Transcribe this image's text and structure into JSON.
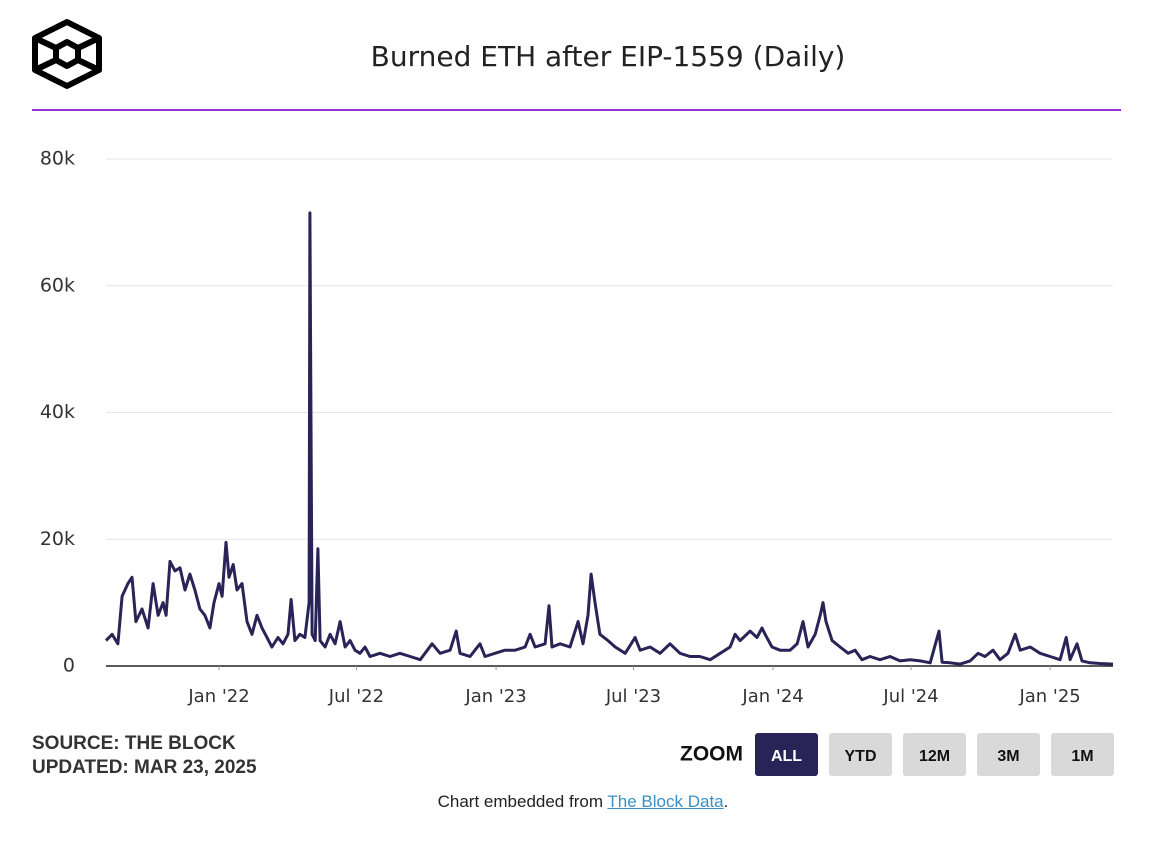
{
  "chart_data": {
    "type": "line",
    "title": "Burned ETH after EIP-1559 (Daily)",
    "color": "#2a2357",
    "grid": true,
    "xlim": [
      2021.592,
      2025.227
    ],
    "xticks": [
      {
        "value": 2022,
        "label": "Jan '22"
      },
      {
        "value": 2022.496,
        "label": "Jul '22"
      },
      {
        "value": 2023,
        "label": "Jan '23"
      },
      {
        "value": 2023.496,
        "label": "Jul '23"
      },
      {
        "value": 2024,
        "label": "Jan '24"
      },
      {
        "value": 2024.498,
        "label": "Jul '24"
      },
      {
        "value": 2025,
        "label": "Jan '25"
      }
    ],
    "ylim": [
      0,
      80000
    ],
    "yticks": [
      0,
      {
        "value": 20000,
        "label": "20k"
      },
      {
        "value": 40000,
        "label": "40k"
      },
      {
        "value": 60000,
        "label": "60k"
      },
      {
        "value": 80000,
        "label": "80k"
      }
    ],
    "x": [
      2021.592,
      2021.614,
      2021.635,
      2021.65,
      2021.671,
      2021.686,
      2021.7,
      2021.722,
      2021.744,
      2021.762,
      2021.78,
      2021.798,
      2021.809,
      2021.823,
      2021.841,
      2021.859,
      2021.877,
      2021.895,
      2021.913,
      2021.931,
      2021.949,
      2021.967,
      2021.982,
      2022.0,
      2022.011,
      2022.025,
      2022.036,
      2022.051,
      2022.065,
      2022.083,
      2022.101,
      2022.119,
      2022.137,
      2022.155,
      2022.173,
      2022.191,
      2022.213,
      2022.231,
      2022.249,
      2022.26,
      2022.274,
      2022.292,
      2022.31,
      2022.325,
      2022.328,
      2022.336,
      2022.347,
      2022.357,
      2022.365,
      2022.383,
      2022.401,
      2022.419,
      2022.437,
      2022.455,
      2022.473,
      2022.491,
      2022.509,
      2022.527,
      2022.545,
      2022.581,
      2022.617,
      2022.653,
      2022.69,
      2022.726,
      2022.769,
      2022.798,
      2022.834,
      2022.856,
      2022.87,
      2022.906,
      2022.942,
      2022.96,
      2022.996,
      2023.032,
      2023.069,
      2023.105,
      2023.123,
      2023.141,
      2023.177,
      2023.191,
      2023.202,
      2023.231,
      2023.267,
      2023.296,
      2023.314,
      2023.332,
      2023.343,
      2023.357,
      2023.375,
      2023.404,
      2023.43,
      2023.466,
      2023.502,
      2023.52,
      2023.556,
      2023.592,
      2023.628,
      2023.664,
      2023.7,
      2023.736,
      2023.773,
      2023.809,
      2023.845,
      2023.863,
      2023.881,
      2023.917,
      2023.942,
      2023.96,
      2023.971,
      2023.996,
      2024.025,
      2024.061,
      2024.087,
      2024.108,
      2024.126,
      2024.152,
      2024.17,
      2024.18,
      2024.191,
      2024.213,
      2024.242,
      2024.271,
      2024.296,
      2024.321,
      2024.35,
      2024.386,
      2024.422,
      2024.458,
      2024.495,
      2024.531,
      2024.567,
      2024.599,
      2024.61,
      2024.639,
      2024.675,
      2024.711,
      2024.74,
      2024.765,
      2024.794,
      2024.819,
      2024.848,
      2024.874,
      2024.892,
      2024.928,
      2024.964,
      2025.0,
      2025.036,
      2025.058,
      2025.072,
      2025.097,
      2025.115,
      2025.144,
      2025.18,
      2025.227
    ],
    "values": [
      4000,
      5000,
      3500,
      11000,
      13000,
      14000,
      7000,
      9000,
      6000,
      13000,
      8000,
      10000,
      8000,
      16500,
      15000,
      15500,
      12000,
      14500,
      12000,
      9000,
      8000,
      6000,
      10000,
      13000,
      11000,
      19500,
      14000,
      16000,
      12000,
      13000,
      7000,
      5000,
      8000,
      6000,
      4500,
      3000,
      4500,
      3500,
      5000,
      10500,
      4000,
      5000,
      4500,
      10000,
      71500,
      5000,
      4000,
      18500,
      4000,
      3000,
      5000,
      3500,
      7000,
      3000,
      4000,
      2500,
      2000,
      3000,
      1500,
      2000,
      1500,
      2000,
      1500,
      1000,
      3500,
      2000,
      2500,
      5500,
      2000,
      1500,
      3500,
      1500,
      2000,
      2500,
      2500,
      3000,
      5000,
      3000,
      3500,
      9500,
      3000,
      3500,
      3000,
      7000,
      3500,
      8000,
      14500,
      10000,
      5000,
      4000,
      3000,
      2000,
      4500,
      2500,
      3000,
      2000,
      3500,
      2000,
      1500,
      1500,
      1000,
      2000,
      3000,
      5000,
      4000,
      5500,
      4500,
      6000,
      5000,
      3000,
      2500,
      2500,
      3500,
      7000,
      3000,
      5000,
      8000,
      10000,
      7000,
      4000,
      3000,
      2000,
      2500,
      1000,
      1500,
      1000,
      1500,
      800,
      1000,
      800,
      500,
      5500,
      600,
      500,
      300,
      800,
      2000,
      1500,
      2500,
      1000,
      2000,
      5000,
      2500,
      3000,
      2000,
      1500,
      1000,
      4500,
      1000,
      3500,
      800,
      500,
      400,
      300
    ]
  },
  "source": "SOURCE: THE BLOCK",
  "updated": "UPDATED: MAR 23, 2025",
  "zoom": {
    "label": "ZOOM",
    "buttons": [
      "ALL",
      "YTD",
      "12M",
      "3M",
      "1M"
    ],
    "active": 0
  },
  "footer": {
    "prefix": "Chart embedded from ",
    "link": "The Block Data",
    "suffix": "."
  }
}
